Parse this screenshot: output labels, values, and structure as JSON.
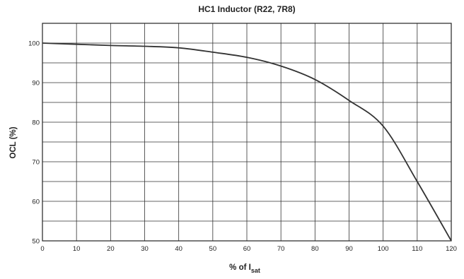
{
  "chart_data": {
    "type": "line",
    "title": "HC1 Inductor (R22, 7R8)",
    "xlabel": "% of I",
    "xlabel_subscript": "sat",
    "ylabel": "OCL (%)",
    "xlim": [
      0,
      120
    ],
    "ylim": [
      50,
      105
    ],
    "x_ticks": [
      0,
      10,
      20,
      30,
      40,
      50,
      60,
      70,
      80,
      90,
      100,
      110,
      120
    ],
    "y_ticks": [
      50,
      60,
      70,
      80,
      90,
      100
    ],
    "y_grid_step": 5,
    "grid": true,
    "colors": {
      "line": "#333333",
      "grid": "#333333",
      "text": "#222222"
    },
    "series": [
      {
        "x": [
          0,
          10,
          20,
          30,
          40,
          50,
          60,
          70,
          80,
          90,
          100,
          110,
          120
        ],
        "values": [
          100,
          99.7,
          99.4,
          99.2,
          98.8,
          97.7,
          96.4,
          94.2,
          90.8,
          85.5,
          79,
          65,
          50
        ]
      }
    ]
  }
}
